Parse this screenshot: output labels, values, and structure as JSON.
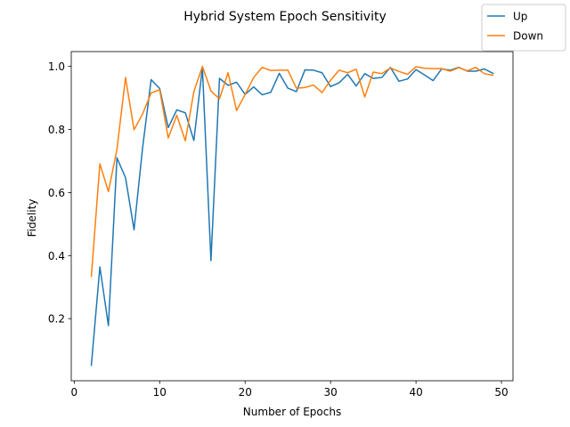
{
  "chart_data": {
    "type": "line",
    "title": "Hybrid System Epoch Sensitivity",
    "xlabel": "Number of Epochs",
    "ylabel": "Fidelity",
    "xlim": [
      -0.35,
      51.35
    ],
    "ylim": [
      0.003,
      1.047
    ],
    "grid": false,
    "legend_position": "top-right",
    "xticks": [
      0,
      10,
      20,
      30,
      40,
      50
    ],
    "yticks": [
      0.2,
      0.4,
      0.6,
      0.8,
      1.0
    ],
    "x": [
      2,
      3,
      4,
      5,
      6,
      7,
      8,
      9,
      10,
      11,
      12,
      13,
      14,
      15,
      16,
      17,
      18,
      19,
      20,
      21,
      22,
      23,
      24,
      25,
      26,
      27,
      28,
      29,
      30,
      31,
      32,
      33,
      34,
      35,
      36,
      37,
      38,
      39,
      40,
      41,
      42,
      43,
      44,
      45,
      46,
      47,
      48,
      49
    ],
    "series": [
      {
        "name": "Up",
        "color": "#1f77b4",
        "values": [
          0.052,
          0.364,
          0.178,
          0.71,
          0.647,
          0.482,
          0.742,
          0.958,
          0.93,
          0.806,
          0.862,
          0.853,
          0.765,
          0.995,
          0.384,
          0.962,
          0.94,
          0.95,
          0.911,
          0.935,
          0.91,
          0.918,
          0.978,
          0.931,
          0.92,
          0.989,
          0.988,
          0.98,
          0.936,
          0.948,
          0.975,
          0.938,
          0.977,
          0.962,
          0.965,
          0.997,
          0.953,
          0.96,
          0.99,
          0.973,
          0.955,
          0.992,
          0.988,
          0.997,
          0.985,
          0.985,
          0.992,
          0.978
        ]
      },
      {
        "name": "Down",
        "color": "#ff7f0e",
        "values": [
          0.334,
          0.691,
          0.603,
          0.737,
          0.965,
          0.799,
          0.849,
          0.916,
          0.926,
          0.773,
          0.845,
          0.764,
          0.92,
          1.0,
          0.922,
          0.897,
          0.98,
          0.86,
          0.911,
          0.965,
          0.997,
          0.987,
          0.988,
          0.988,
          0.931,
          0.933,
          0.941,
          0.917,
          0.956,
          0.988,
          0.98,
          0.991,
          0.903,
          0.982,
          0.977,
          0.995,
          0.984,
          0.975,
          0.999,
          0.994,
          0.993,
          0.993,
          0.985,
          0.996,
          0.986,
          0.997,
          0.977,
          0.972
        ]
      }
    ]
  }
}
